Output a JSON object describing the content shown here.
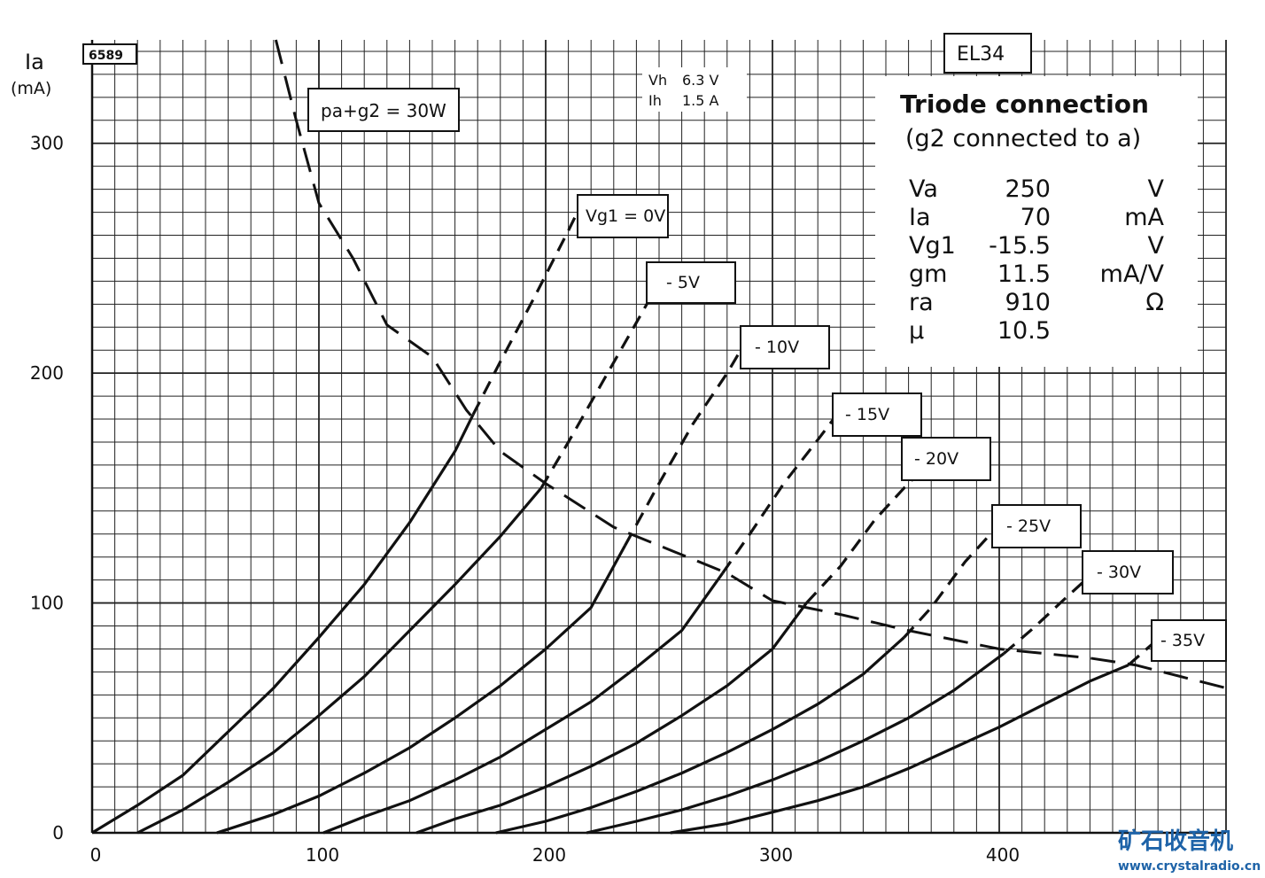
{
  "chart_data": {
    "type": "line",
    "title": "EL34",
    "chart_id": "6589",
    "xlabel": "",
    "ylabel_symbol": "Ia",
    "ylabel_unit": "(mA)",
    "xlim": [
      0,
      500
    ],
    "ylim": [
      0,
      345
    ],
    "x_ticks": [
      0,
      100,
      200,
      300,
      400
    ],
    "y_ticks": [
      0,
      100,
      200,
      300
    ],
    "x_tick_labels": [
      "0",
      "100",
      "200",
      "300",
      "400"
    ],
    "y_tick_labels": [
      "0",
      "100",
      "200",
      "300"
    ],
    "grid": true,
    "heater": {
      "vh_label": "Vh",
      "vh_value": "6.3 V",
      "ih_label": "Ih",
      "ih_value": "1.5 A"
    },
    "dissipation_label": "pa+g2 = 30W",
    "dissipation_curve": [
      [
        81,
        345
      ],
      [
        90,
        310
      ],
      [
        100,
        274
      ],
      [
        115,
        250
      ],
      [
        130,
        221
      ],
      [
        150,
        207
      ],
      [
        165,
        184
      ],
      [
        180,
        166
      ],
      [
        200,
        152
      ],
      [
        230,
        133
      ],
      [
        280,
        113
      ],
      [
        300,
        101
      ],
      [
        330,
        95
      ],
      [
        360,
        88
      ],
      [
        400,
        80
      ],
      [
        440,
        76
      ],
      [
        460,
        73
      ],
      [
        500,
        63
      ]
    ],
    "series": [
      {
        "name": "Vg1 = 0V",
        "solid": [
          [
            0,
            0
          ],
          [
            20,
            12
          ],
          [
            40,
            25
          ],
          [
            60,
            44
          ],
          [
            80,
            63
          ],
          [
            100,
            85
          ],
          [
            120,
            108
          ],
          [
            140,
            135
          ],
          [
            160,
            166
          ],
          [
            168,
            182
          ]
        ],
        "dashed": [
          [
            168,
            182
          ],
          [
            180,
            205
          ],
          [
            195,
            233
          ],
          [
            210,
            262
          ],
          [
            214,
            270
          ]
        ]
      },
      {
        "name": "- 5V",
        "solid": [
          [
            20,
            0
          ],
          [
            40,
            10
          ],
          [
            60,
            22
          ],
          [
            80,
            35
          ],
          [
            100,
            51
          ],
          [
            120,
            68
          ],
          [
            140,
            88
          ],
          [
            160,
            108
          ],
          [
            180,
            129
          ],
          [
            198,
            150
          ]
        ],
        "dashed": [
          [
            198,
            150
          ],
          [
            210,
            170
          ],
          [
            225,
            196
          ],
          [
            240,
            222
          ],
          [
            248,
            236
          ]
        ]
      },
      {
        "name": "- 10V",
        "solid": [
          [
            55,
            0
          ],
          [
            80,
            8
          ],
          [
            100,
            16
          ],
          [
            120,
            26
          ],
          [
            140,
            37
          ],
          [
            160,
            50
          ],
          [
            180,
            64
          ],
          [
            200,
            80
          ],
          [
            220,
            98
          ],
          [
            235,
            125
          ]
        ],
        "dashed": [
          [
            235,
            125
          ],
          [
            250,
            152
          ],
          [
            265,
            178
          ],
          [
            280,
            200
          ],
          [
            286,
            210
          ]
        ]
      },
      {
        "name": "- 15V",
        "solid": [
          [
            102,
            0
          ],
          [
            120,
            7
          ],
          [
            140,
            14
          ],
          [
            160,
            23
          ],
          [
            180,
            33
          ],
          [
            200,
            45
          ],
          [
            220,
            57
          ],
          [
            240,
            72
          ],
          [
            260,
            88
          ],
          [
            278,
            113
          ]
        ],
        "dashed": [
          [
            278,
            113
          ],
          [
            290,
            130
          ],
          [
            305,
            152
          ],
          [
            320,
            171
          ],
          [
            330,
            184
          ]
        ]
      },
      {
        "name": "- 20V",
        "solid": [
          [
            143,
            0
          ],
          [
            160,
            6
          ],
          [
            180,
            12
          ],
          [
            200,
            20
          ],
          [
            220,
            29
          ],
          [
            240,
            39
          ],
          [
            260,
            51
          ],
          [
            280,
            64
          ],
          [
            300,
            80
          ],
          [
            315,
            100
          ]
        ],
        "dashed": [
          [
            315,
            100
          ],
          [
            330,
            116
          ],
          [
            345,
            136
          ],
          [
            358,
            150
          ],
          [
            366,
            158
          ]
        ]
      },
      {
        "name": "- 25V",
        "solid": [
          [
            178,
            0
          ],
          [
            200,
            5
          ],
          [
            220,
            11
          ],
          [
            240,
            18
          ],
          [
            260,
            26
          ],
          [
            280,
            35
          ],
          [
            300,
            45
          ],
          [
            320,
            56
          ],
          [
            340,
            69
          ],
          [
            358,
            85
          ]
        ],
        "dashed": [
          [
            358,
            85
          ],
          [
            370,
            98
          ],
          [
            385,
            118
          ],
          [
            398,
            132
          ],
          [
            404,
            137
          ]
        ]
      },
      {
        "name": "- 30V",
        "solid": [
          [
            218,
            0
          ],
          [
            240,
            5
          ],
          [
            260,
            10
          ],
          [
            280,
            16
          ],
          [
            300,
            23
          ],
          [
            320,
            31
          ],
          [
            340,
            40
          ],
          [
            360,
            50
          ],
          [
            380,
            62
          ],
          [
            402,
            78
          ]
        ],
        "dashed": [
          [
            402,
            78
          ],
          [
            415,
            89
          ],
          [
            428,
            101
          ],
          [
            438,
            110
          ]
        ]
      },
      {
        "name": "- 35V",
        "solid": [
          [
            255,
            0
          ],
          [
            280,
            4
          ],
          [
            300,
            9
          ],
          [
            320,
            14
          ],
          [
            340,
            20
          ],
          [
            360,
            28
          ],
          [
            380,
            37
          ],
          [
            400,
            46
          ],
          [
            420,
            56
          ],
          [
            440,
            66
          ],
          [
            457,
            73
          ]
        ],
        "dashed": [
          [
            457,
            73
          ],
          [
            465,
            80
          ],
          [
            472,
            86
          ],
          [
            480,
            92
          ]
        ]
      }
    ],
    "curve_labels": [
      "Vg1 = 0V",
      "- 5V",
      "- 10V",
      "- 15V",
      "- 20V",
      "- 25V",
      "- 30V",
      "- 35V"
    ]
  },
  "info_box": {
    "title": "Triode connection",
    "subtitle": "(g2 connected to a)",
    "rows": [
      {
        "param": "Va",
        "value": "250",
        "unit": "V"
      },
      {
        "param": "Ia",
        "value": "70",
        "unit": "mA"
      },
      {
        "param": "Vg1",
        "value": "-15.5",
        "unit": "V"
      },
      {
        "param": "gm",
        "value": "11.5",
        "unit": "mA/V"
      },
      {
        "param": "ra",
        "value": "910",
        "unit": "Ω"
      },
      {
        "param": "μ",
        "value": "10.5",
        "unit": ""
      }
    ]
  },
  "watermark": {
    "title": "矿石收音机",
    "url": "www.crystalradio.cn",
    "color": "#1e63a8"
  }
}
